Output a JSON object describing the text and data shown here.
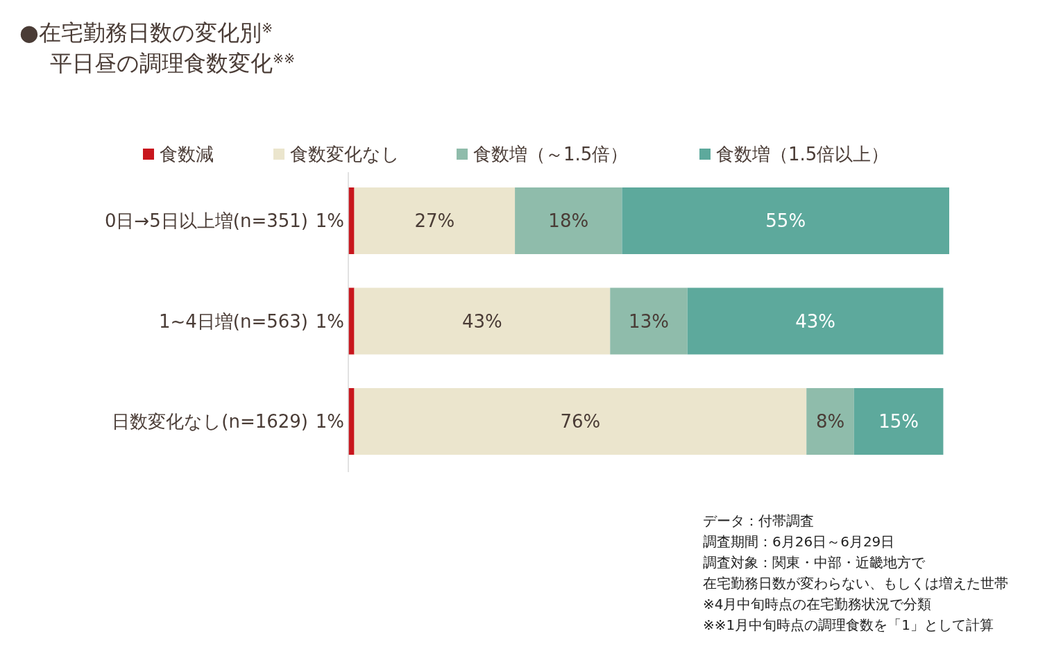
{
  "chart_data": {
    "type": "bar",
    "orientation": "horizontal",
    "stacked": true,
    "legend": "top",
    "title": "●在宅勤務日数の変化別$^{※}$",
    "subtitle": "平日昼の調理食数変化$^{※※}$",
    "categories": [
      "0日→5日以上増(n=351)",
      "1~4日増(n=563)",
      "日数変化なし(n=1629)"
    ],
    "series": [
      {
        "name": "食数減",
        "color": "#c8161d",
        "values": [
          1,
          1,
          1
        ],
        "value_labels": [
          "1%",
          "1%",
          "1%"
        ]
      },
      {
        "name": "食数変化なし",
        "color": "#ebe5cd",
        "values": [
          27,
          43,
          76
        ],
        "value_labels": [
          "27%",
          "43%",
          "76%"
        ]
      },
      {
        "name": "食数増（～1.5倍）",
        "color": "#8fbcab",
        "values": [
          18,
          13,
          8
        ],
        "value_labels": [
          "18%",
          "13%",
          "8%"
        ]
      },
      {
        "name": "食数増（1.5倍以上）",
        "color": "#5da99c",
        "values": [
          55,
          43,
          15
        ],
        "value_labels": [
          "55%",
          "43%",
          "15%"
        ]
      }
    ],
    "annotations": [
      "データ：付帯調査",
      "調査期間：6月26日～6月29日",
      "調査対象：関東・中部・近畿地方で",
      "在宅勤務日数が変わらない、もしくは増えた世帯",
      "※4月中旬時点の在宅勤務状況で分類",
      "※※1月中旬時点の調理食数を「1」として計算"
    ]
  }
}
